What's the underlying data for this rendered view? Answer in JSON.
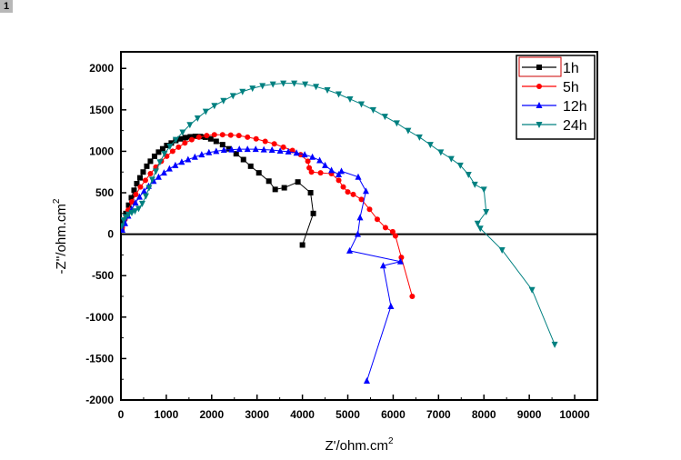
{
  "badge": "1",
  "chart_data": {
    "type": "scatter",
    "title": "",
    "xlabel": "Z'/ohm.cm",
    "xlabel_sup": "2",
    "ylabel": "-Z''/ohm.cm",
    "ylabel_sup": "2",
    "xlim": [
      0,
      10500
    ],
    "ylim": [
      -2000,
      2200
    ],
    "xticks": [
      "0",
      "1000",
      "2000",
      "3000",
      "4000",
      "5000",
      "6000",
      "7000",
      "8000",
      "9000",
      "10000"
    ],
    "yticks": [
      "-2000",
      "-1500",
      "-1000",
      "-500",
      "0",
      "500",
      "1000",
      "1500",
      "2000"
    ],
    "zero_line": true,
    "grid": false,
    "legend_position": "top-right",
    "series": [
      {
        "name": "1h",
        "color": "#000000",
        "marker": "square",
        "x": [
          20,
          60,
          110,
          170,
          230,
          290,
          350,
          420,
          490,
          570,
          650,
          740,
          830,
          920,
          1010,
          1110,
          1210,
          1310,
          1420,
          1530,
          1640,
          1750,
          1860,
          1980,
          2100,
          2240,
          2380,
          2540,
          2700,
          2860,
          3040,
          3260,
          3400,
          3600,
          3900,
          4180,
          4240,
          4000
        ],
        "y": [
          60,
          150,
          250,
          350,
          440,
          530,
          610,
          680,
          750,
          820,
          880,
          940,
          990,
          1030,
          1070,
          1100,
          1130,
          1150,
          1165,
          1175,
          1180,
          1178,
          1170,
          1150,
          1120,
          1080,
          1030,
          970,
          900,
          820,
          740,
          640,
          540,
          560,
          630,
          500,
          250,
          -130
        ]
      },
      {
        "name": "5h",
        "color": "#ff0000",
        "marker": "circle",
        "x": [
          30,
          90,
          160,
          240,
          330,
          430,
          540,
          650,
          770,
          890,
          1010,
          1140,
          1270,
          1410,
          1560,
          1720,
          1890,
          2060,
          2240,
          2420,
          2600,
          2790,
          2980,
          3180,
          3380,
          3580,
          3780,
          3960,
          4120,
          4150,
          4200,
          4400,
          4640,
          4800,
          4900,
          5000,
          5120,
          5300,
          5480,
          5650,
          5830,
          5990,
          6050,
          6180,
          6420
        ],
        "y": [
          80,
          180,
          290,
          390,
          480,
          570,
          650,
          730,
          810,
          880,
          940,
          1000,
          1050,
          1100,
          1140,
          1170,
          1190,
          1200,
          1200,
          1195,
          1190,
          1170,
          1150,
          1120,
          1090,
          1050,
          1010,
          960,
          880,
          800,
          750,
          740,
          730,
          650,
          570,
          510,
          480,
          420,
          300,
          180,
          80,
          30,
          -20,
          -280,
          -750
        ]
      },
      {
        "name": "12h",
        "color": "#0000ff",
        "marker": "triangle-up",
        "x": [
          30,
          90,
          160,
          240,
          320,
          410,
          510,
          610,
          720,
          830,
          950,
          1070,
          1200,
          1340,
          1480,
          1630,
          1780,
          1940,
          2100,
          2270,
          2440,
          2610,
          2790,
          2970,
          3150,
          3330,
          3510,
          3690,
          3870,
          4050,
          4220,
          4380,
          4500,
          4640,
          4800,
          4860,
          5230,
          5400,
          5270,
          5220,
          5040,
          6160,
          5780,
          5950,
          5420
        ],
        "y": [
          50,
          130,
          220,
          300,
          380,
          450,
          520,
          580,
          640,
          690,
          740,
          790,
          830,
          870,
          900,
          930,
          960,
          985,
          1000,
          1015,
          1020,
          1025,
          1025,
          1025,
          1020,
          1015,
          1005,
          995,
          980,
          960,
          930,
          890,
          830,
          770,
          720,
          760,
          690,
          520,
          200,
          0,
          -200,
          -330,
          -380,
          -870,
          -1770
        ]
      },
      {
        "name": "24h",
        "color": "#008080",
        "marker": "triangle-down",
        "x": [
          20,
          60,
          110,
          170,
          240,
          310,
          390,
          470,
          550,
          620,
          690,
          770,
          860,
          960,
          1080,
          1210,
          1360,
          1520,
          1690,
          1870,
          2060,
          2260,
          2470,
          2680,
          2900,
          3120,
          3350,
          3580,
          3820,
          4060,
          4300,
          4550,
          4800,
          5050,
          5300,
          5560,
          5820,
          6080,
          6330,
          6580,
          6820,
          7050,
          7280,
          7480,
          7660,
          7800,
          8000,
          8050,
          7860,
          7920,
          8400,
          9060,
          9560
        ],
        "y": [
          100,
          170,
          210,
          240,
          260,
          280,
          310,
          370,
          460,
          560,
          660,
          760,
          870,
          970,
          1060,
          1140,
          1230,
          1320,
          1400,
          1480,
          1550,
          1610,
          1670,
          1720,
          1760,
          1790,
          1810,
          1820,
          1820,
          1810,
          1780,
          1740,
          1690,
          1630,
          1570,
          1500,
          1420,
          1340,
          1250,
          1170,
          1080,
          990,
          910,
          830,
          720,
          600,
          540,
          270,
          130,
          70,
          -190,
          -670,
          -1330
        ]
      }
    ]
  }
}
